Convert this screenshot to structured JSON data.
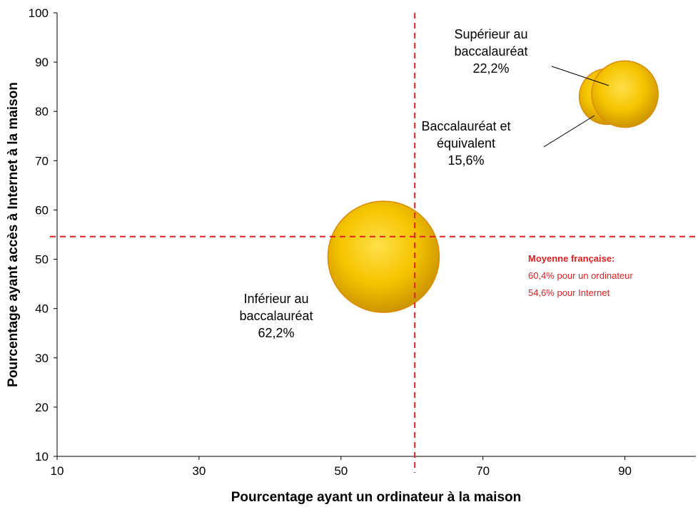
{
  "chart_data": {
    "type": "bubble",
    "xlabel": "Pourcentage ayant un ordinateur à la maison",
    "ylabel": "Pourcentage ayant accès à Internet à la maison",
    "xlim": [
      10,
      100
    ],
    "ylim": [
      10,
      100
    ],
    "xticks": [
      10,
      30,
      50,
      70,
      90
    ],
    "yticks": [
      10,
      20,
      30,
      40,
      50,
      60,
      70,
      80,
      90,
      100
    ],
    "grid": false,
    "bubble_color": "#f2c200",
    "bubble_edge_color": "#e08a00",
    "reference_color": "#e02020",
    "points": [
      {
        "id": "inferieur",
        "x": 56,
        "y": 50.5,
        "size": 62.2,
        "label_lines": [
          "Inférieur au",
          "baccalauréat",
          "62,2%"
        ]
      },
      {
        "id": "bac",
        "x": 87.5,
        "y": 83,
        "size": 15.6,
        "label_lines": [
          "Baccalauréat et",
          "équivalent",
          "15,6%"
        ]
      },
      {
        "id": "superieur",
        "x": 90,
        "y": 83.5,
        "size": 22.2,
        "label_lines": [
          "Supérieur au",
          "baccalauréat",
          "22,2%"
        ]
      }
    ],
    "reference": {
      "x": 60.4,
      "y": 54.6,
      "title": "Moyenne française:",
      "lines": [
        "60,4% pour un ordinateur",
        "54,6% pour Internet"
      ]
    }
  }
}
